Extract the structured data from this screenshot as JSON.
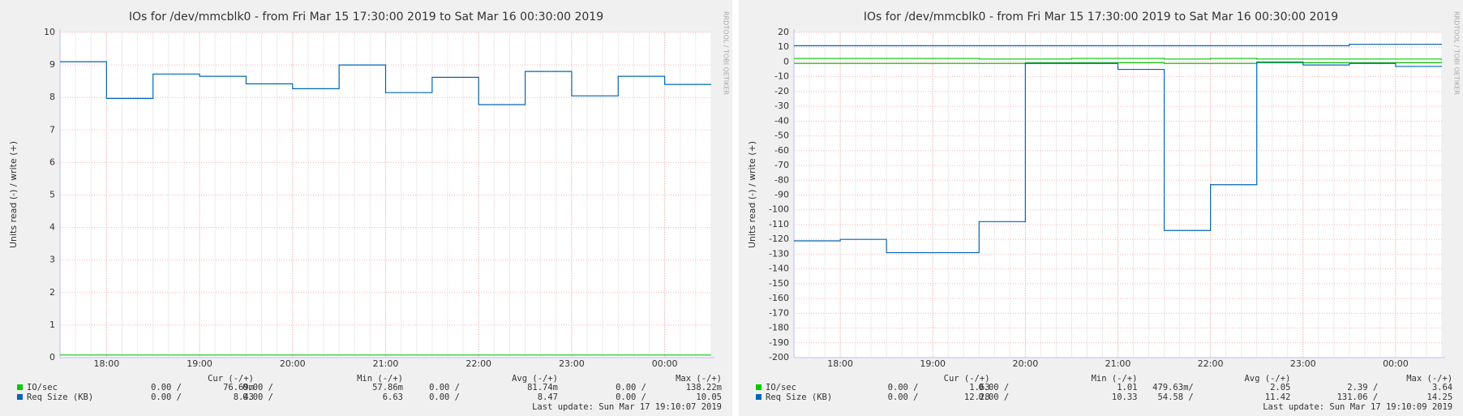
{
  "chart_data": [
    {
      "type": "line",
      "title": "IOs for /dev/mmcblk0 - from Fri Mar 15 17:30:00 2019 to Sat Mar 16 00:30:00 2019",
      "ylabel": "Units read (-) / write (+)",
      "watermark": "RRDTOOL / TOBI OETIKER",
      "x": [
        "17:30",
        "18:00",
        "18:30",
        "19:00",
        "19:30",
        "20:00",
        "20:30",
        "21:00",
        "21:30",
        "22:00",
        "22:30",
        "23:00",
        "23:30",
        "00:00"
      ],
      "xlim": [
        "17:30",
        "00:30"
      ],
      "xticks": [
        "18:00",
        "19:00",
        "20:00",
        "21:00",
        "22:00",
        "23:00",
        "00:00"
      ],
      "ylim": [
        0,
        10
      ],
      "yticks": [
        0,
        1,
        2,
        3,
        4,
        5,
        6,
        7,
        8,
        9,
        10
      ],
      "grid": true,
      "series": [
        {
          "name": "IO/sec",
          "color": "#00cc00",
          "values": [
            0.08,
            0.08,
            0.08,
            0.08,
            0.08,
            0.08,
            0.08,
            0.08,
            0.08,
            0.08,
            0.08,
            0.08,
            0.08,
            0.08
          ]
        },
        {
          "name": "Req Size (KB)",
          "color": "#0066b3",
          "values": [
            9.1,
            7.97,
            8.72,
            8.65,
            8.42,
            8.27,
            9.0,
            8.15,
            8.62,
            7.78,
            8.8,
            8.05,
            8.65,
            8.4
          ]
        }
      ],
      "legend_table": {
        "headers": [
          "Cur (-/+)",
          "Min (-/+)",
          "Avg (-/+)",
          "Max (-/+)"
        ],
        "rows": [
          [
            "0.00 /",
            "76.69m",
            "0.00 /",
            "57.86m",
            "0.00 /",
            "81.74m",
            "0.00 /",
            "138.22m"
          ],
          [
            "0.00 /",
            "8.43",
            "0.00 /",
            "6.63",
            "0.00 /",
            "8.47",
            "0.00 /",
            "10.05"
          ]
        ]
      },
      "last_update": "Last update: Sun Mar 17 19:10:07 2019"
    },
    {
      "type": "line",
      "title": "IOs for /dev/mmcblk0 - from Fri Mar 15 17:30:00 2019 to Sat Mar 16 00:30:00 2019",
      "ylabel": "Units read (-) / write (+)",
      "watermark": "RRDTOOL / TOBI OETIKER",
      "x": [
        "17:30",
        "18:00",
        "18:30",
        "19:00",
        "19:30",
        "20:00",
        "20:30",
        "21:00",
        "21:30",
        "22:00",
        "22:30",
        "23:00",
        "23:30",
        "00:00"
      ],
      "xlim": [
        "17:30",
        "00:30"
      ],
      "xticks": [
        "18:00",
        "19:00",
        "20:00",
        "21:00",
        "22:00",
        "23:00",
        "00:00"
      ],
      "ylim": [
        -200,
        20
      ],
      "yticks": [
        20,
        10,
        0,
        -10,
        -20,
        -30,
        -40,
        -50,
        -60,
        -70,
        -80,
        -90,
        -100,
        -110,
        -120,
        -130,
        -140,
        -150,
        -160,
        -170,
        -180,
        -190,
        -200
      ],
      "grid": true,
      "series": [
        {
          "name": "IO/sec",
          "color": "#00cc00",
          "values": [
            2.4,
            2.4,
            2.4,
            2.4,
            2,
            2,
            2.4,
            2.4,
            2,
            2.4,
            2,
            2,
            2,
            2
          ],
          "read": [
            -1,
            -1,
            -1,
            -1,
            -1,
            -0.5,
            -0.5,
            -0.5,
            -1,
            -1,
            -0.5,
            -0.5,
            -0.5,
            -0.5
          ]
        },
        {
          "name": "Req Size (KB)",
          "color": "#0066b3",
          "values": [
            11,
            11,
            11,
            11,
            11,
            11,
            11,
            11,
            11,
            11,
            11,
            11,
            12,
            12
          ],
          "read": [
            -121,
            -120,
            -129,
            -129,
            -108,
            -1,
            -1,
            -5,
            -114,
            -83,
            0,
            -2,
            -1,
            -3
          ]
        }
      ],
      "legend_table": {
        "headers": [
          "Cur (-/+)",
          "Min (-/+)",
          "Avg (-/+)",
          "Max (-/+)"
        ],
        "rows": [
          [
            "0.00 /",
            "1.63",
            "0.00 /",
            "1.01",
            "479.63m/",
            "2.05",
            "2.39 /",
            "3.64"
          ],
          [
            "0.00 /",
            "12.28",
            "0.00 /",
            "10.33",
            "54.58 /",
            "11.42",
            "131.06 /",
            "14.25"
          ]
        ]
      },
      "last_update": "Last update: Sun Mar 17 19:10:09 2019"
    }
  ]
}
